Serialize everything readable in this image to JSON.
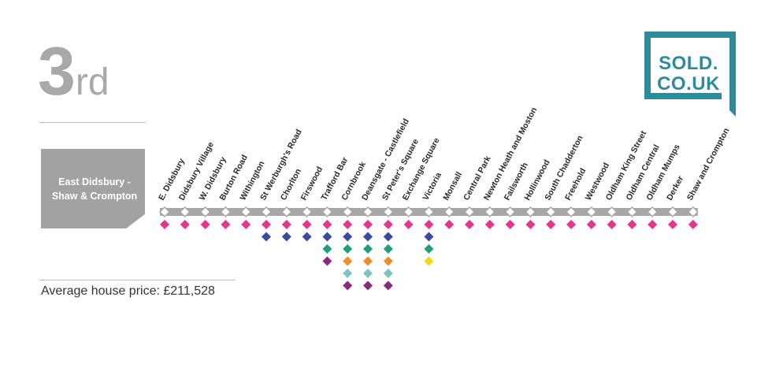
{
  "rank": {
    "number": "3",
    "suffix": "rd"
  },
  "line_name": "East Didsbury -\nShaw & Crompton",
  "average_price_text": "Average house price: £211,528",
  "logo": {
    "line1": "SOLD.",
    "line2": "CO.UK",
    "color": "#2d8b9b"
  },
  "colors": {
    "track": "#a7a7a7",
    "pink": "#e6368c",
    "blue": "#3a4aa0",
    "green": "#1ea07a",
    "orange": "#f08c2a",
    "teal": "#7ac4c1",
    "purple": "#8a2a7e",
    "yellow": "#f2d61a"
  },
  "stations": [
    {
      "name": "E. Didsbury",
      "lines": [
        "pink"
      ]
    },
    {
      "name": "Didsbury Village",
      "lines": [
        "pink"
      ]
    },
    {
      "name": "W. Didsbury",
      "lines": [
        "pink"
      ]
    },
    {
      "name": "Burton Road",
      "lines": [
        "pink"
      ]
    },
    {
      "name": "Withington",
      "lines": [
        "pink"
      ]
    },
    {
      "name": "St Werburgh's Road",
      "lines": [
        "pink",
        "blue"
      ]
    },
    {
      "name": "Chorlton",
      "lines": [
        "pink",
        "blue"
      ]
    },
    {
      "name": "Firswood",
      "lines": [
        "pink",
        "blue"
      ]
    },
    {
      "name": "Trafford Bar",
      "lines": [
        "pink",
        "blue",
        "green",
        "purple"
      ]
    },
    {
      "name": "Cornbrook",
      "lines": [
        "pink",
        "blue",
        "green",
        "orange",
        "teal",
        "purple"
      ]
    },
    {
      "name": "Deansgate - Castlefield",
      "lines": [
        "pink",
        "blue",
        "green",
        "orange",
        "teal",
        "purple"
      ]
    },
    {
      "name": "St Peter's Square",
      "lines": [
        "pink",
        "blue",
        "green",
        "orange",
        "teal",
        "purple"
      ]
    },
    {
      "name": "Exchange Square",
      "lines": [
        "pink"
      ]
    },
    {
      "name": "Victoria",
      "lines": [
        "pink",
        "blue",
        "green",
        "yellow"
      ]
    },
    {
      "name": "Monsall",
      "lines": [
        "pink"
      ]
    },
    {
      "name": "Central Park",
      "lines": [
        "pink"
      ]
    },
    {
      "name": "Newton Heath and Moston",
      "lines": [
        "pink"
      ]
    },
    {
      "name": "Failsworth",
      "lines": [
        "pink"
      ]
    },
    {
      "name": "Hollinwood",
      "lines": [
        "pink"
      ]
    },
    {
      "name": "South Chadderton",
      "lines": [
        "pink"
      ]
    },
    {
      "name": "Freehold",
      "lines": [
        "pink"
      ]
    },
    {
      "name": "Westwood",
      "lines": [
        "pink"
      ]
    },
    {
      "name": "Oldham King Street",
      "lines": [
        "pink"
      ]
    },
    {
      "name": "Oldham Central",
      "lines": [
        "pink"
      ]
    },
    {
      "name": "Oldham Mumps",
      "lines": [
        "pink"
      ]
    },
    {
      "name": "Derker",
      "lines": [
        "pink"
      ]
    },
    {
      "name": "Shaw and Crompton",
      "lines": [
        "pink"
      ]
    }
  ]
}
